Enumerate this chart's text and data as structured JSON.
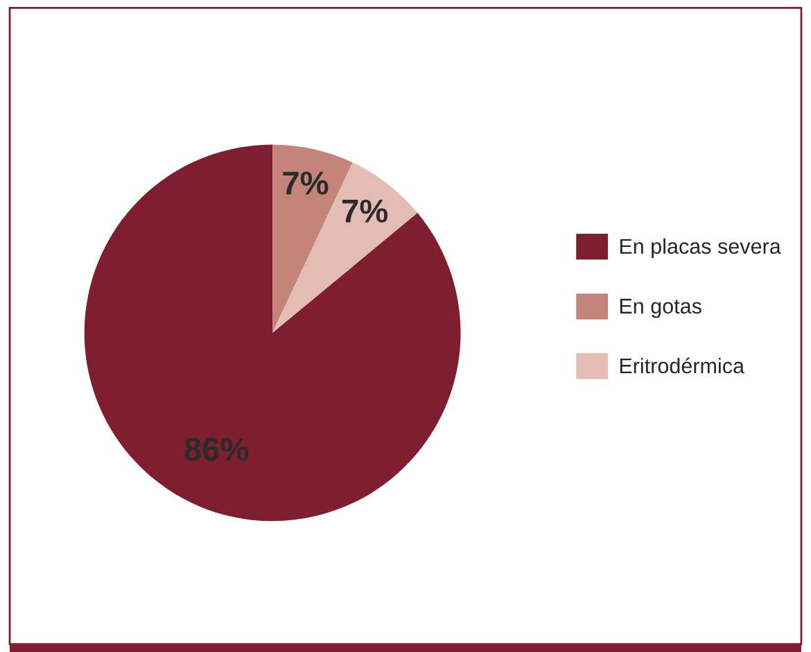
{
  "chart_data": {
    "type": "pie",
    "categories": [
      "En placas severa",
      "En gotas",
      "Eritrodérmica"
    ],
    "values": [
      86,
      7,
      7
    ],
    "colors": [
      "#7f1e2e",
      "#c4847a",
      "#e3bdb3"
    ],
    "value_labels": [
      "86%",
      "7%",
      "7%"
    ],
    "legend": "right"
  }
}
